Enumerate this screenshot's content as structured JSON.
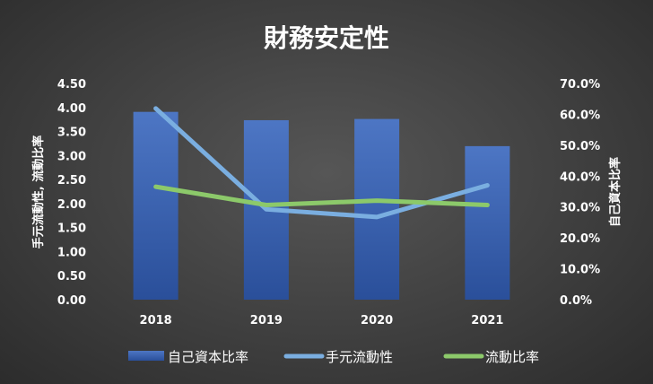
{
  "chart_data": {
    "type": "bar",
    "title": "財務安定性",
    "categories": [
      "2018",
      "2019",
      "2020",
      "2021"
    ],
    "series": [
      {
        "name": "自己資本比率",
        "kind": "bar",
        "axis": "right",
        "values": [
          60.8,
          58.1,
          58.5,
          49.7
        ],
        "color": "#3c66b4"
      },
      {
        "name": "手元流動性",
        "kind": "line",
        "axis": "left",
        "values": [
          3.98,
          1.88,
          1.72,
          2.38
        ],
        "color": "#7aaee0"
      },
      {
        "name": "流動比率",
        "kind": "line",
        "axis": "left",
        "values": [
          2.35,
          1.97,
          2.06,
          1.97
        ],
        "color": "#8cc96a"
      }
    ],
    "y_left": {
      "label": "手元流動性, 流動比率",
      "range": [
        0,
        4.5
      ],
      "ticks": [
        "0.00",
        "0.50",
        "1.00",
        "1.50",
        "2.00",
        "2.50",
        "3.00",
        "3.50",
        "4.00",
        "4.50"
      ]
    },
    "y_right": {
      "label": "自己資本比率",
      "range": [
        0,
        70
      ],
      "ticks": [
        "0.0%",
        "10.0%",
        "20.0%",
        "30.0%",
        "40.0%",
        "50.0%",
        "60.0%",
        "70.0%"
      ]
    },
    "grid": false,
    "legend_position": "bottom"
  },
  "colors": {
    "background": "#3f3f3f",
    "text": "#ffffff"
  }
}
